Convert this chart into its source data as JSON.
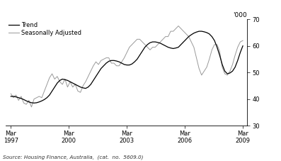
{
  "ylabel_right": "'000",
  "source_text": "Source: Housing Finance, Australia,  (cat.  no.  5609.0)",
  "legend_entries": [
    "Trend",
    "Seasonally Adjusted"
  ],
  "legend_colors": [
    "#000000",
    "#999999"
  ],
  "ylim": [
    30,
    70
  ],
  "yticks": [
    30,
    40,
    50,
    60,
    70
  ],
  "xtick_years": [
    1997,
    2000,
    2003,
    2006,
    2009
  ],
  "background_color": "#ffffff",
  "trend_color": "#000000",
  "seasonal_color": "#999999",
  "trend_data": [
    41.0,
    41.0,
    40.8,
    40.5,
    40.2,
    39.8,
    39.3,
    38.9,
    38.6,
    38.5,
    38.6,
    38.9,
    39.3,
    39.8,
    40.5,
    41.5,
    43.0,
    44.5,
    46.0,
    47.0,
    47.5,
    47.3,
    47.0,
    46.5,
    46.0,
    45.5,
    45.0,
    44.5,
    44.2,
    44.0,
    44.5,
    45.5,
    47.0,
    48.5,
    50.0,
    51.5,
    52.5,
    53.5,
    54.2,
    54.5,
    54.5,
    54.3,
    54.0,
    53.5,
    53.0,
    52.8,
    52.8,
    53.2,
    54.0,
    55.0,
    56.5,
    58.0,
    59.5,
    60.5,
    61.2,
    61.5,
    61.5,
    61.3,
    61.0,
    60.5,
    60.0,
    59.5,
    59.2,
    59.0,
    59.2,
    59.5,
    60.5,
    61.5,
    62.5,
    63.5,
    64.2,
    64.8,
    65.2,
    65.5,
    65.5,
    65.3,
    65.0,
    64.5,
    63.5,
    62.0,
    59.5,
    56.5,
    53.0,
    50.5,
    49.5,
    49.8,
    50.5,
    52.0,
    54.5,
    57.5,
    60.0
  ],
  "seasonal_data": [
    42.0,
    40.5,
    41.5,
    39.5,
    41.0,
    38.5,
    38.0,
    39.5,
    37.0,
    40.0,
    40.5,
    41.0,
    40.5,
    43.0,
    45.5,
    48.0,
    49.5,
    47.5,
    48.5,
    46.5,
    45.5,
    47.5,
    44.5,
    46.5,
    44.5,
    45.5,
    43.0,
    42.5,
    45.0,
    46.5,
    48.5,
    50.5,
    52.5,
    54.0,
    53.0,
    54.5,
    55.0,
    55.5,
    55.5,
    53.5,
    53.5,
    52.5,
    52.5,
    54.0,
    55.5,
    57.5,
    59.5,
    60.5,
    61.5,
    62.5,
    62.5,
    61.5,
    60.5,
    59.5,
    58.5,
    59.5,
    59.5,
    60.5,
    61.5,
    62.5,
    63.5,
    63.5,
    65.5,
    65.5,
    66.5,
    67.5,
    66.5,
    65.5,
    64.5,
    63.5,
    61.5,
    59.5,
    55.5,
    51.5,
    49.0,
    50.5,
    52.0,
    55.0,
    58.5,
    60.5,
    60.5,
    58.0,
    52.0,
    49.5,
    49.0,
    50.5,
    53.0,
    56.5,
    59.5,
    61.5,
    62.0
  ],
  "n_points": 91,
  "x_start": 1997.17,
  "x_end": 2009.17
}
